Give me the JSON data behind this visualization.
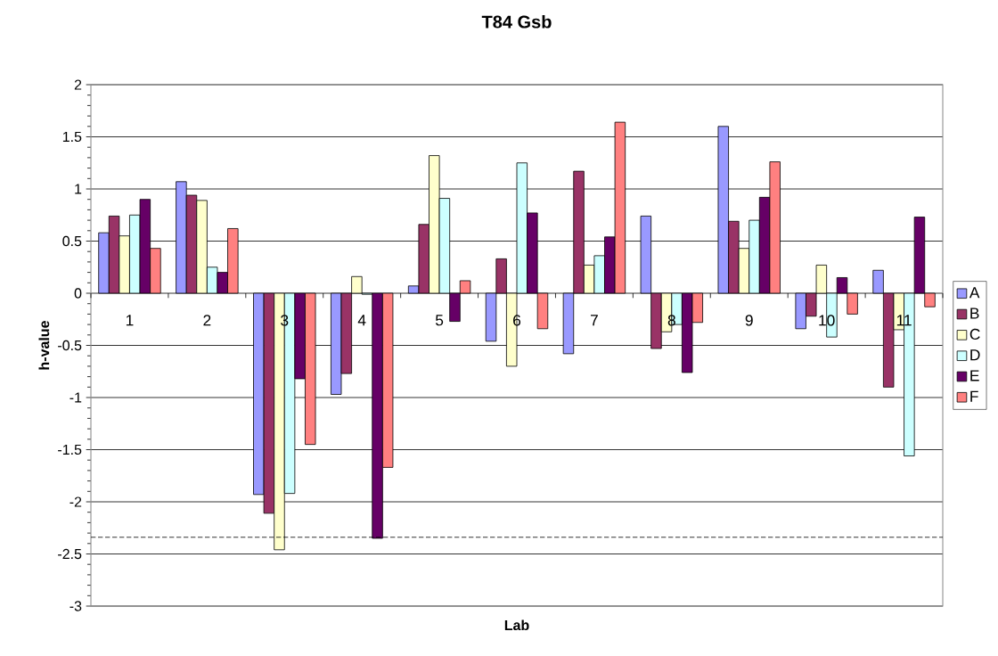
{
  "chart_data": {
    "type": "bar",
    "title": "T84 Gsb",
    "xlabel": "Lab",
    "ylabel": "h-value",
    "categories": [
      "1",
      "2",
      "3",
      "4",
      "5",
      "6",
      "7",
      "8",
      "9",
      "10",
      "11"
    ],
    "series": [
      {
        "name": "A",
        "color": "#9999ff",
        "values": [
          0.58,
          1.07,
          -1.93,
          -0.97,
          0.07,
          -0.46,
          -0.58,
          0.74,
          1.6,
          -0.34,
          0.22
        ]
      },
      {
        "name": "B",
        "color": "#993366",
        "values": [
          0.74,
          0.94,
          -2.11,
          -0.77,
          0.66,
          0.33,
          1.17,
          -0.53,
          0.69,
          -0.22,
          -0.9
        ]
      },
      {
        "name": "C",
        "color": "#ffffcc",
        "values": [
          0.55,
          0.89,
          -2.46,
          0.16,
          1.32,
          -0.7,
          0.27,
          -0.37,
          0.43,
          0.27,
          -0.35
        ]
      },
      {
        "name": "D",
        "color": "#ccffff",
        "values": [
          0.75,
          0.25,
          -1.92,
          -0.01,
          0.91,
          1.25,
          0.36,
          -0.3,
          0.7,
          -0.42,
          -1.56
        ]
      },
      {
        "name": "E",
        "color": "#660066",
        "values": [
          0.9,
          0.2,
          -0.82,
          -2.35,
          -0.27,
          0.77,
          0.54,
          -0.76,
          0.92,
          0.15,
          0.73
        ]
      },
      {
        "name": "F",
        "color": "#ff8080",
        "values": [
          0.43,
          0.62,
          -1.45,
          -1.67,
          0.12,
          -0.34,
          1.64,
          -0.28,
          1.26,
          -0.2,
          -0.13
        ]
      }
    ],
    "ylim": [
      -3,
      2
    ],
    "yticks": [
      -3,
      -2.5,
      -2,
      -1.5,
      -1,
      -0.5,
      0,
      0.5,
      1,
      1.5,
      2
    ],
    "ref_lines": [
      {
        "axis": "y",
        "value": -2.34,
        "color": "#000000",
        "line_style": "dashed"
      }
    ],
    "grid": "y",
    "legend": "right"
  }
}
